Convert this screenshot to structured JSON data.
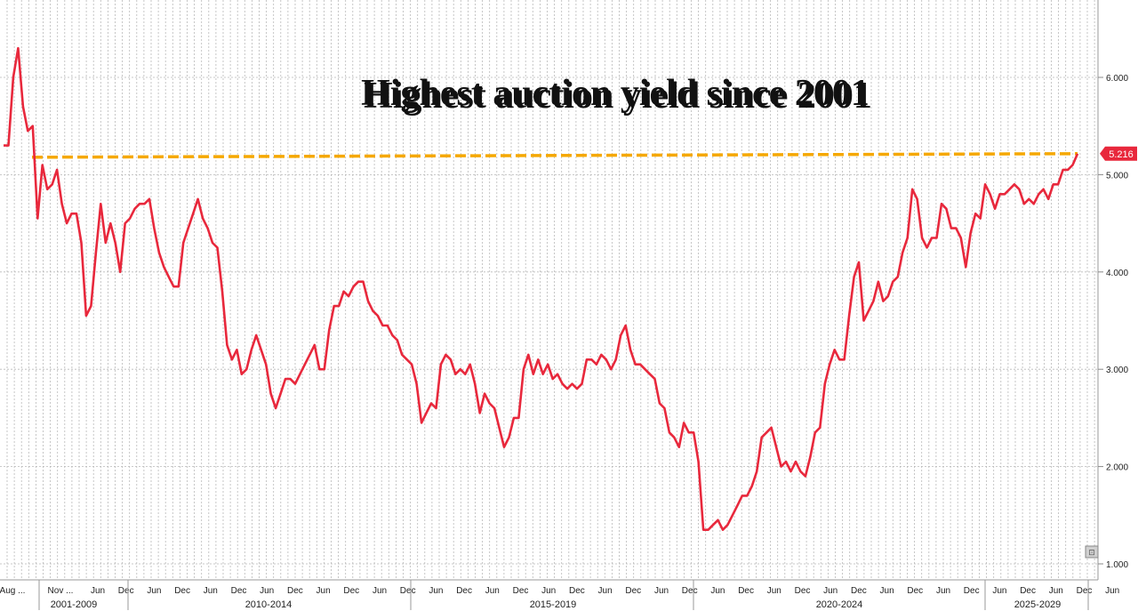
{
  "chart_data": {
    "type": "line",
    "title": "Highest auction yield since 2001",
    "xlabel": "",
    "ylabel": "",
    "ylim": [
      0.95,
      6.8
    ],
    "y_ticks": [
      "1.000",
      "2.000",
      "3.000",
      "4.000",
      "5.000",
      "6.000"
    ],
    "x_tick_labels": [
      "Aug ...",
      "Nov ...",
      "Jun",
      "Dec",
      "Jun",
      "Dec",
      "Jun",
      "Dec",
      "Jun",
      "Dec",
      "Jun",
      "Dec",
      "Jun",
      "Dec",
      "Jun",
      "Dec",
      "Jun",
      "Dec",
      "Jun",
      "Dec",
      "Jun",
      "Dec",
      "Jun",
      "Dec",
      "Jun",
      "Dec",
      "Jun",
      "Dec",
      "Jun",
      "Dec",
      "Jun",
      "Dec",
      "Jun",
      "Dec",
      "Jun",
      "Dec",
      "Jun",
      "Dec",
      "Jun"
    ],
    "x_group_labels": [
      "2001-2009",
      "2010-2014",
      "2015-2019",
      "2020-2024",
      "2025-2029"
    ],
    "grid": true,
    "reference_line": {
      "value": 5.216,
      "label": "5.216",
      "color": "#f5a800"
    },
    "last_value_label": "5.216",
    "line_color": "#e8283c",
    "series": [
      {
        "values": [
          5.3,
          5.3,
          6.0,
          6.3,
          5.7,
          5.45,
          5.5,
          4.55,
          5.1,
          4.85,
          4.9,
          5.05,
          4.7,
          4.5,
          4.6,
          4.6,
          4.3,
          3.55,
          3.65,
          4.2,
          4.7,
          4.3,
          4.5,
          4.3,
          4.0,
          4.5,
          4.55,
          4.65,
          4.7,
          4.7,
          4.75,
          4.45,
          4.2,
          4.05,
          3.95,
          3.85,
          3.85,
          4.3,
          4.45,
          4.6,
          4.75,
          4.55,
          4.45,
          4.3,
          4.25,
          3.8,
          3.25,
          3.1,
          3.2,
          2.95,
          3.0,
          3.2,
          3.35,
          3.2,
          3.05,
          2.75,
          2.6,
          2.75,
          2.9,
          2.9,
          2.85,
          2.95,
          3.05,
          3.15,
          3.25,
          3.0,
          3.0,
          3.4,
          3.65,
          3.65,
          3.8,
          3.75,
          3.85,
          3.9,
          3.9,
          3.7,
          3.6,
          3.55,
          3.45,
          3.45,
          3.35,
          3.3,
          3.15,
          3.1,
          3.05,
          2.85,
          2.45,
          2.55,
          2.65,
          2.6,
          3.05,
          3.15,
          3.1,
          2.95,
          3.0,
          2.95,
          3.05,
          2.85,
          2.55,
          2.75,
          2.65,
          2.6,
          2.4,
          2.2,
          2.3,
          2.5,
          2.5,
          3.0,
          3.15,
          2.95,
          3.1,
          2.95,
          3.05,
          2.9,
          2.95,
          2.85,
          2.8,
          2.85,
          2.8,
          2.85,
          3.1,
          3.1,
          3.05,
          3.15,
          3.1,
          3.0,
          3.1,
          3.35,
          3.45,
          3.2,
          3.05,
          3.05,
          3.0,
          2.95,
          2.9,
          2.65,
          2.6,
          2.35,
          2.3,
          2.2,
          2.45,
          2.35,
          2.35,
          2.05,
          1.35,
          1.35,
          1.4,
          1.45,
          1.35,
          1.4,
          1.5,
          1.6,
          1.7,
          1.7,
          1.8,
          1.95,
          2.3,
          2.35,
          2.4,
          2.2,
          2.0,
          2.05,
          1.95,
          2.05,
          1.95,
          1.9,
          2.1,
          2.35,
          2.4,
          2.85,
          3.05,
          3.2,
          3.1,
          3.1,
          3.55,
          3.95,
          4.1,
          3.5,
          3.6,
          3.7,
          3.9,
          3.7,
          3.75,
          3.9,
          3.95,
          4.2,
          4.35,
          4.85,
          4.75,
          4.35,
          4.25,
          4.35,
          4.35,
          4.7,
          4.65,
          4.45,
          4.45,
          4.35,
          4.05,
          4.4,
          4.6,
          4.55,
          4.9,
          4.8,
          4.65,
          4.8,
          4.8,
          4.85,
          4.9,
          4.85,
          4.7,
          4.75,
          4.7,
          4.8,
          4.85,
          4.75,
          4.9,
          4.9,
          5.05,
          5.05,
          5.1,
          5.216
        ]
      }
    ]
  }
}
